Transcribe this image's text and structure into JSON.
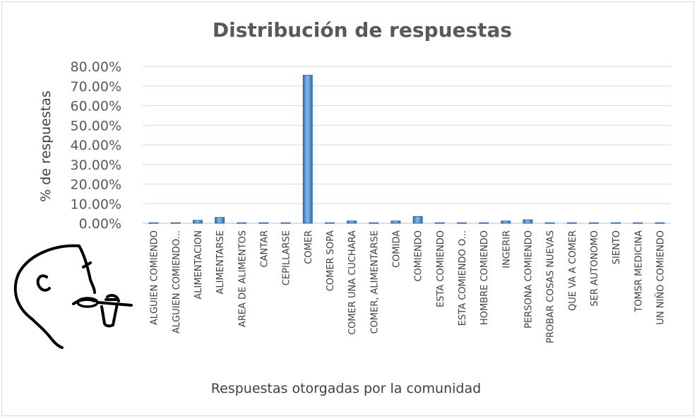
{
  "chart_data": {
    "type": "bar",
    "title": "Distribución de respuestas",
    "xlabel": "Respuestas otorgadas por la comunidad",
    "ylabel": "% de respuestas",
    "ylim": [
      0,
      0.8
    ],
    "yticks": [
      "0.00%",
      "10.00%",
      "20.00%",
      "30.00%",
      "40.00%",
      "50.00%",
      "60.00%",
      "70.00%",
      "80.00%"
    ],
    "grid": true,
    "legend": "none",
    "bar_color": "#4f8fcc",
    "categories": [
      "ALGUIEN COMIENDO",
      "ALGUIEN COMIENDO...",
      "ALIMENTACION",
      "ALIMENTARSE",
      "AREA DE ALIMENTOS",
      "CANTAR",
      "CEPILLARSE",
      "COMER",
      "COMER SOPA",
      "COMER UNA CUCHARA",
      "COMER, ALIMENTARSE",
      "COMIDA",
      "COMIENDO",
      "ESTA COMIENDO",
      "ESTA COMIENDO O...",
      "HOMBRE COMIENDO",
      "INGERIR",
      "PERSONA COMIENDO",
      "PROBAR COSAS NUEVAS",
      "QUE VA A COMER",
      "SER AUTONOMO",
      "SIENTO",
      "TOMSR MEDICINA",
      "UN NIÑO COMIENDO"
    ],
    "values": [
      0.003,
      0.003,
      0.015,
      0.03,
      0.003,
      0.003,
      0.003,
      0.755,
      0.003,
      0.012,
      0.003,
      0.012,
      0.035,
      0.003,
      0.003,
      0.003,
      0.012,
      0.018,
      0.003,
      0.003,
      0.003,
      0.003,
      0.003,
      0.003
    ]
  },
  "illustration": {
    "icon": "person-eating-with-spoon-icon"
  }
}
